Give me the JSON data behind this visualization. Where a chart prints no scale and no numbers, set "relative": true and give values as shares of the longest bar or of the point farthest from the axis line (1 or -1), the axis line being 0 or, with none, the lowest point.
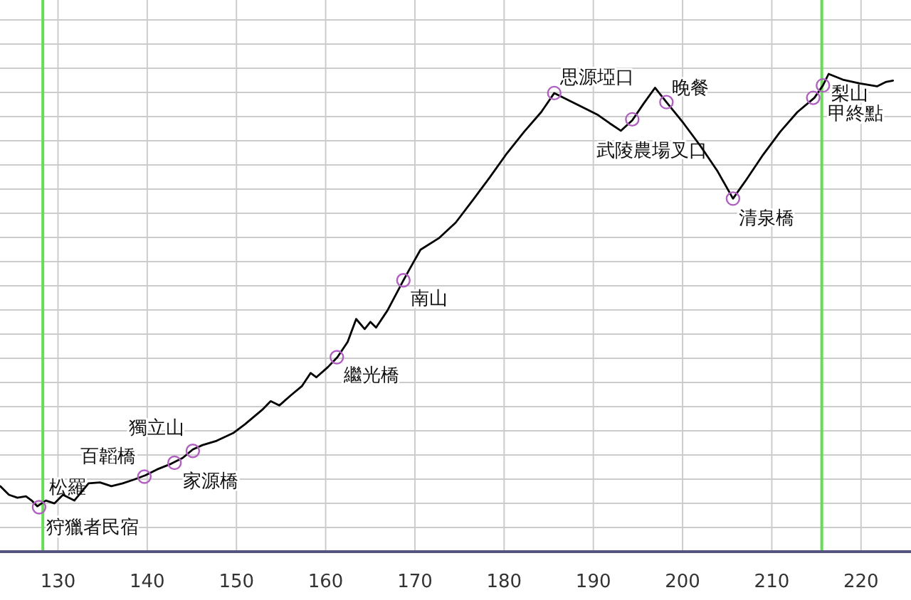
{
  "chart_data": {
    "type": "line",
    "relative": true,
    "xlim": [
      123.5,
      225.6
    ],
    "xticks": [
      130,
      140,
      150,
      160,
      170,
      180,
      190,
      200,
      210,
      220
    ],
    "grid": true,
    "series": [
      {
        "type": "line",
        "color": "#000000",
        "x": [
          123.54,
          124.5,
          125.45,
          126.41,
          127.05,
          127.69,
          128.64,
          129.6,
          130.56,
          131.83,
          133.43,
          134.71,
          135.98,
          137.26,
          138.54,
          139.81,
          141.09,
          142.68,
          143.96,
          145.11,
          146.19,
          147.78,
          149.7,
          150.97,
          152.89,
          153.84,
          154.8,
          156.08,
          157.36,
          158.31,
          158.95,
          160.23,
          161.31,
          162.46,
          163.42,
          164.37,
          165.01,
          165.65,
          166.93,
          168.71,
          169.48,
          170.63,
          172.67,
          174.58,
          176.5,
          178.41,
          180.32,
          182.24,
          184.15,
          185.62,
          187.34,
          189.26,
          190.53,
          191.81,
          193.08,
          194.36,
          195.64,
          196.91,
          198.19,
          200.1,
          202.01,
          203.93,
          205.65,
          207.12,
          209.03,
          210.94,
          212.86,
          214.77,
          215.73,
          216.37,
          217.96,
          219.88,
          221.79,
          222.75,
          223.58
        ],
        "values": [
          0.137,
          0.119,
          0.113,
          0.116,
          0.107,
          0.095,
          0.107,
          0.101,
          0.119,
          0.107,
          0.143,
          0.145,
          0.137,
          0.143,
          0.151,
          0.16,
          0.172,
          0.184,
          0.196,
          0.214,
          0.223,
          0.232,
          0.249,
          0.267,
          0.297,
          0.315,
          0.306,
          0.327,
          0.347,
          0.374,
          0.365,
          0.386,
          0.407,
          0.439,
          0.487,
          0.466,
          0.481,
          0.469,
          0.505,
          0.568,
          0.594,
          0.632,
          0.656,
          0.689,
          0.736,
          0.784,
          0.834,
          0.879,
          0.92,
          0.96,
          0.944,
          0.926,
          0.914,
          0.897,
          0.881,
          0.903,
          0.938,
          0.971,
          0.941,
          0.897,
          0.849,
          0.796,
          0.739,
          0.778,
          0.831,
          0.879,
          0.92,
          0.95,
          0.976,
          1.0,
          0.988,
          0.98,
          0.974,
          0.983,
          0.986
        ]
      },
      {
        "type": "scatter",
        "color": "#b060c0",
        "marker": "circle",
        "x": [
          127.88,
          139.68,
          143.06,
          145.11,
          161.25,
          168.71,
          185.62,
          194.36,
          198.19,
          205.65,
          214.64,
          215.73
        ],
        "values": [
          0.093,
          0.157,
          0.186,
          0.211,
          0.407,
          0.568,
          0.96,
          0.905,
          0.941,
          0.739,
          0.95,
          0.976
        ]
      }
    ],
    "ref_lines": [
      {
        "axis": "x",
        "value": 128.3,
        "color": "#66dd55"
      },
      {
        "axis": "x",
        "value": 215.6,
        "color": "#66dd55"
      }
    ],
    "annotations": [
      {
        "text": "松羅",
        "x": 127.88,
        "y": 0.093
      },
      {
        "text": "狩獵者民宿",
        "x": 127.88,
        "y": 0.093
      },
      {
        "text": "百韜橋",
        "x": 139.68,
        "y": 0.157
      },
      {
        "text": "家源橋",
        "x": 143.06,
        "y": 0.186
      },
      {
        "text": "獨立山",
        "x": 145.11,
        "y": 0.211
      },
      {
        "text": "繼光橋",
        "x": 161.25,
        "y": 0.407
      },
      {
        "text": "南山",
        "x": 168.71,
        "y": 0.568
      },
      {
        "text": "思源埡口",
        "x": 185.62,
        "y": 0.96
      },
      {
        "text": "武陵農場叉口",
        "x": 194.36,
        "y": 0.905
      },
      {
        "text": "晚餐",
        "x": 198.19,
        "y": 0.941
      },
      {
        "text": "清泉橋",
        "x": 205.65,
        "y": 0.739
      },
      {
        "text": "梨山",
        "x": 215.73,
        "y": 0.976
      },
      {
        "text": "甲終點",
        "x": 214.64,
        "y": 0.95
      }
    ]
  }
}
